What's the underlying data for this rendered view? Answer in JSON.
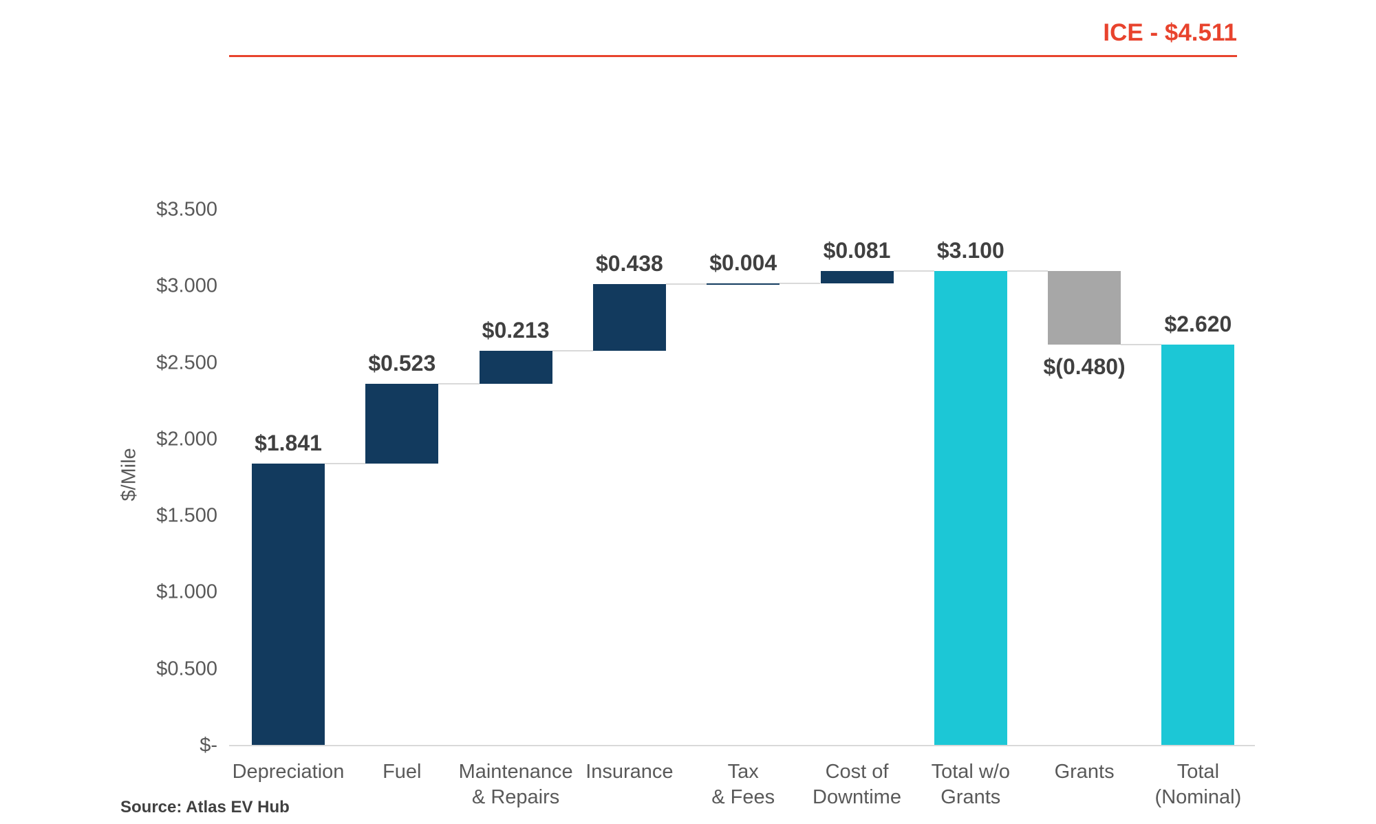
{
  "chart_data": {
    "type": "waterfall",
    "title": "",
    "ylabel": "$/Mile",
    "ylim": [
      0,
      3.5
    ],
    "ytick_step": 0.5,
    "ytick_labels": [
      "$-",
      "$0.500",
      "$1.000",
      "$1.500",
      "$2.000",
      "$2.500",
      "$3.000",
      "$3.500"
    ],
    "reference_line": {
      "label": "ICE - $4.511",
      "value": 4.511
    },
    "source": "Source: Atlas EV Hub",
    "categories": [
      "Depreciation",
      "Fuel",
      "Maintenance\n& Repairs",
      "Insurance",
      "Tax\n& Fees",
      "Cost of\nDowntime",
      "Total w/o\nGrants",
      "Grants",
      "Total\n(Nominal)"
    ],
    "bars": [
      {
        "name": "depreciation",
        "value": 1.841,
        "start": 0,
        "end": 1.841,
        "kind": "increase",
        "label": "$1.841",
        "label_position": "above"
      },
      {
        "name": "fuel",
        "value": 0.523,
        "start": 1.841,
        "end": 2.364,
        "kind": "increase",
        "label": "$0.523",
        "label_position": "above"
      },
      {
        "name": "maintenance-repairs",
        "value": 0.213,
        "start": 2.364,
        "end": 2.577,
        "kind": "increase",
        "label": "$0.213",
        "label_position": "above"
      },
      {
        "name": "insurance",
        "value": 0.438,
        "start": 2.577,
        "end": 3.015,
        "kind": "increase",
        "label": "$0.438",
        "label_position": "above"
      },
      {
        "name": "tax-fees",
        "value": 0.004,
        "start": 3.015,
        "end": 3.019,
        "kind": "increase",
        "label": "$0.004",
        "label_position": "above"
      },
      {
        "name": "cost-of-downtime",
        "value": 0.081,
        "start": 3.019,
        "end": 3.1,
        "kind": "increase",
        "label": "$0.081",
        "label_position": "above"
      },
      {
        "name": "total-wo-grants",
        "value": 3.1,
        "start": 0,
        "end": 3.1,
        "kind": "total",
        "label": "$3.100",
        "label_position": "above"
      },
      {
        "name": "grants",
        "value": -0.48,
        "start": 3.1,
        "end": 2.62,
        "kind": "decrease",
        "label": "$(0.480)",
        "label_position": "below"
      },
      {
        "name": "total-nominal",
        "value": 2.62,
        "start": 0,
        "end": 2.62,
        "kind": "total",
        "label": "$2.620",
        "label_position": "above"
      }
    ],
    "colors": {
      "increase": "#123a5e",
      "decrease": "#a7a7a7",
      "total": "#1cc7d6",
      "reference": "#e8432d",
      "connector": "#d9d9d9",
      "axis_line": "#d9d9d9",
      "tick_text": "#595959",
      "data_label": "#404040"
    },
    "grid": "off",
    "legend": "none"
  }
}
